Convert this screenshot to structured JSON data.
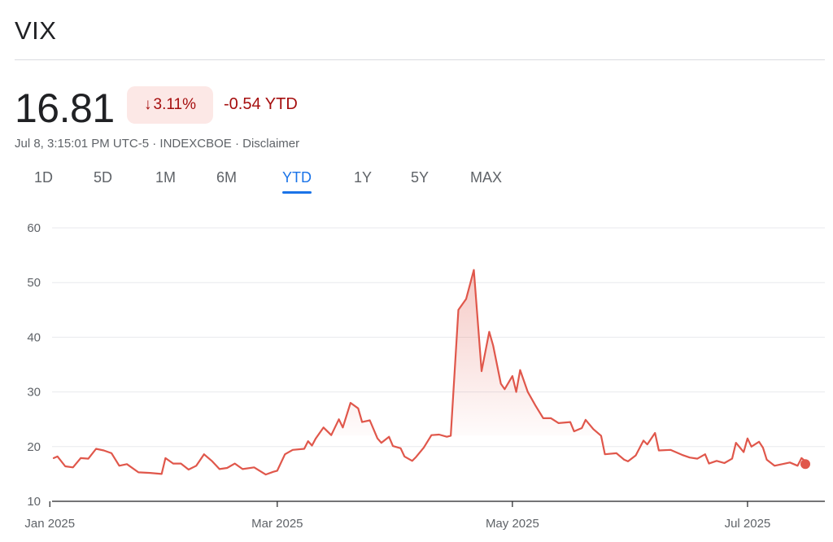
{
  "header": {
    "title": "VIX"
  },
  "quote": {
    "price": "16.81",
    "change_arrow_icon": "arrow-down-icon",
    "change_percent": "3.11%",
    "ytd_change": "-0.54 YTD",
    "timestamp": "Jul 8, 3:15:01 PM UTC-5",
    "separator": "·",
    "exchange": "INDEXCBOE",
    "disclaimer": "Disclaimer"
  },
  "colors": {
    "negative": "#a50e0e",
    "negative_bg": "#fce8e6",
    "line": "#e0574b",
    "accent": "#1a73e8"
  },
  "tabs": [
    {
      "label": "1D",
      "active": false
    },
    {
      "label": "5D",
      "active": false
    },
    {
      "label": "1M",
      "active": false
    },
    {
      "label": "6M",
      "active": false
    },
    {
      "label": "YTD",
      "active": true
    },
    {
      "label": "1Y",
      "active": false
    },
    {
      "label": "5Y",
      "active": false
    },
    {
      "label": "MAX",
      "active": false
    }
  ],
  "chart_data": {
    "type": "area",
    "x_tick_labels": [
      "Jan 2025",
      "Mar 2025",
      "May 2025",
      "Jul 2025"
    ],
    "y_ticks": [
      10,
      20,
      30,
      40,
      50,
      60
    ],
    "ylim": [
      10,
      60
    ],
    "xlim": [
      "2025-01-02",
      "2025-07-08"
    ],
    "grid": true,
    "series": [
      {
        "values": [
          [
            "2025-01-02",
            17.9
          ],
          [
            "2025-01-03",
            18.2
          ],
          [
            "2025-01-05",
            16.4
          ],
          [
            "2025-01-07",
            16.2
          ],
          [
            "2025-01-09",
            17.9
          ],
          [
            "2025-01-11",
            17.8
          ],
          [
            "2025-01-13",
            19.6
          ],
          [
            "2025-01-15",
            19.3
          ],
          [
            "2025-01-17",
            18.8
          ],
          [
            "2025-01-19",
            16.5
          ],
          [
            "2025-01-21",
            16.8
          ],
          [
            "2025-01-24",
            15.3
          ],
          [
            "2025-01-27",
            15.2
          ],
          [
            "2025-01-30",
            15.0
          ],
          [
            "2025-01-31",
            17.9
          ],
          [
            "2025-02-02",
            16.9
          ],
          [
            "2025-02-04",
            16.9
          ],
          [
            "2025-02-06",
            15.8
          ],
          [
            "2025-02-08",
            16.5
          ],
          [
            "2025-02-10",
            18.6
          ],
          [
            "2025-02-12",
            17.4
          ],
          [
            "2025-02-14",
            15.9
          ],
          [
            "2025-02-16",
            16.1
          ],
          [
            "2025-02-18",
            16.9
          ],
          [
            "2025-02-20",
            15.9
          ],
          [
            "2025-02-23",
            16.2
          ],
          [
            "2025-02-26",
            14.9
          ],
          [
            "2025-02-28",
            15.4
          ],
          [
            "2025-03-01",
            15.6
          ],
          [
            "2025-03-03",
            18.6
          ],
          [
            "2025-03-05",
            19.4
          ],
          [
            "2025-03-08",
            19.6
          ],
          [
            "2025-03-09",
            21.0
          ],
          [
            "2025-03-10",
            20.2
          ],
          [
            "2025-03-11",
            21.5
          ],
          [
            "2025-03-13",
            23.5
          ],
          [
            "2025-03-15",
            22.1
          ],
          [
            "2025-03-17",
            25.0
          ],
          [
            "2025-03-18",
            23.5
          ],
          [
            "2025-03-20",
            28.0
          ],
          [
            "2025-03-22",
            27.0
          ],
          [
            "2025-03-23",
            24.5
          ],
          [
            "2025-03-25",
            24.8
          ],
          [
            "2025-03-27",
            21.5
          ],
          [
            "2025-03-28",
            20.7
          ],
          [
            "2025-03-30",
            21.8
          ],
          [
            "2025-03-31",
            20.1
          ],
          [
            "2025-04-02",
            19.7
          ],
          [
            "2025-04-03",
            18.2
          ],
          [
            "2025-04-05",
            17.4
          ],
          [
            "2025-04-06",
            18.1
          ],
          [
            "2025-04-08",
            19.8
          ],
          [
            "2025-04-10",
            22.1
          ],
          [
            "2025-04-12",
            22.2
          ],
          [
            "2025-04-14",
            21.8
          ],
          [
            "2025-04-15",
            22.0
          ],
          [
            "2025-04-17",
            45.0
          ],
          [
            "2025-04-19",
            47.0
          ],
          [
            "2025-04-21",
            52.3
          ],
          [
            "2025-04-23",
            33.8
          ],
          [
            "2025-04-25",
            41.0
          ],
          [
            "2025-04-26",
            38.5
          ],
          [
            "2025-04-28",
            31.5
          ],
          [
            "2025-04-29",
            30.5
          ],
          [
            "2025-05-01",
            32.9
          ],
          [
            "2025-05-02",
            30.0
          ],
          [
            "2025-05-03",
            34.0
          ],
          [
            "2025-05-05",
            30.0
          ],
          [
            "2025-05-07",
            27.5
          ],
          [
            "2025-05-09",
            25.2
          ],
          [
            "2025-05-11",
            25.2
          ],
          [
            "2025-05-13",
            24.3
          ],
          [
            "2025-05-16",
            24.5
          ],
          [
            "2025-05-17",
            22.8
          ],
          [
            "2025-05-19",
            23.4
          ],
          [
            "2025-05-20",
            24.9
          ],
          [
            "2025-05-22",
            23.2
          ],
          [
            "2025-05-24",
            22.0
          ],
          [
            "2025-05-25",
            18.6
          ],
          [
            "2025-05-28",
            18.8
          ],
          [
            "2025-05-30",
            17.6
          ],
          [
            "2025-05-31",
            17.3
          ],
          [
            "2025-06-02",
            18.4
          ],
          [
            "2025-06-04",
            21.1
          ],
          [
            "2025-06-05",
            20.4
          ],
          [
            "2025-06-07",
            22.5
          ],
          [
            "2025-06-08",
            19.3
          ],
          [
            "2025-06-11",
            19.4
          ],
          [
            "2025-06-14",
            18.5
          ],
          [
            "2025-06-16",
            18.0
          ],
          [
            "2025-06-18",
            17.8
          ],
          [
            "2025-06-20",
            18.6
          ],
          [
            "2025-06-21",
            16.9
          ],
          [
            "2025-06-23",
            17.4
          ],
          [
            "2025-06-25",
            17.0
          ],
          [
            "2025-06-27",
            17.8
          ],
          [
            "2025-06-28",
            20.7
          ],
          [
            "2025-06-30",
            19.0
          ],
          [
            "2025-07-01",
            21.5
          ],
          [
            "2025-07-02",
            20.0
          ],
          [
            "2025-07-04",
            20.9
          ],
          [
            "2025-07-05",
            19.8
          ],
          [
            "2025-07-06",
            17.6
          ],
          [
            "2025-07-08",
            16.5
          ],
          [
            "2025-07-10",
            16.8
          ],
          [
            "2025-07-12",
            17.1
          ],
          [
            "2025-07-14",
            16.5
          ],
          [
            "2025-07-15",
            17.9
          ],
          [
            "2025-07-16",
            17.3
          ]
        ]
      }
    ],
    "baseline_value": 22.0
  }
}
